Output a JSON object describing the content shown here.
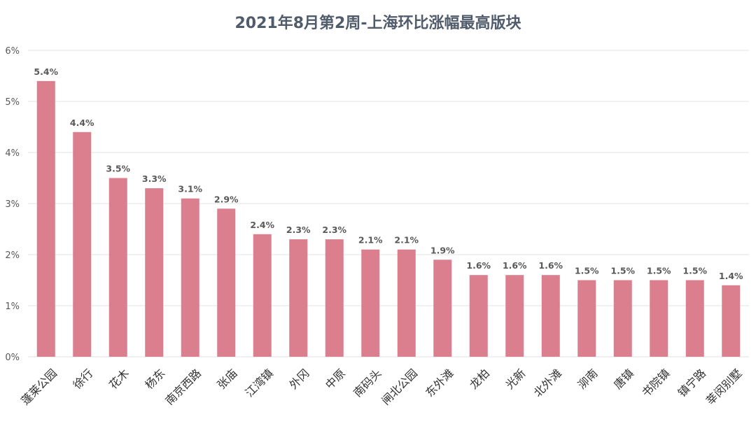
{
  "chart_data": {
    "type": "bar",
    "title": "2021年8月第2周-上海环比涨幅最高版块",
    "categories": [
      "蓬莱公园",
      "徐行",
      "花木",
      "杨东",
      "南京西路",
      "张庙",
      "江湾镇",
      "外冈",
      "中原",
      "南码头",
      "闸北公园",
      "东外滩",
      "龙柏",
      "光新",
      "北外滩",
      "泖南",
      "唐镇",
      "书院镇",
      "镇宁路",
      "莘闵别墅"
    ],
    "values": [
      5.4,
      4.4,
      3.5,
      3.3,
      3.1,
      2.9,
      2.4,
      2.3,
      2.3,
      2.1,
      2.1,
      1.9,
      1.6,
      1.6,
      1.6,
      1.5,
      1.5,
      1.5,
      1.5,
      1.4
    ],
    "data_labels": [
      "5.4%",
      "4.4%",
      "3.5%",
      "3.3%",
      "3.1%",
      "2.9%",
      "2.4%",
      "2.3%",
      "2.3%",
      "2.1%",
      "2.1%",
      "1.9%",
      "1.6%",
      "1.6%",
      "1.6%",
      "1.5%",
      "1.5%",
      "1.5%",
      "1.5%",
      "1.4%"
    ],
    "ytick_labels": [
      "0%",
      "1%",
      "2%",
      "3%",
      "4%",
      "5%",
      "6%"
    ],
    "yticks": [
      0,
      1,
      2,
      3,
      4,
      5,
      6
    ],
    "ylim": [
      0,
      6
    ],
    "xlabel": "",
    "ylabel": "",
    "grid": true,
    "bar_color": "#db7f8e",
    "title_color": "#505b6b"
  }
}
